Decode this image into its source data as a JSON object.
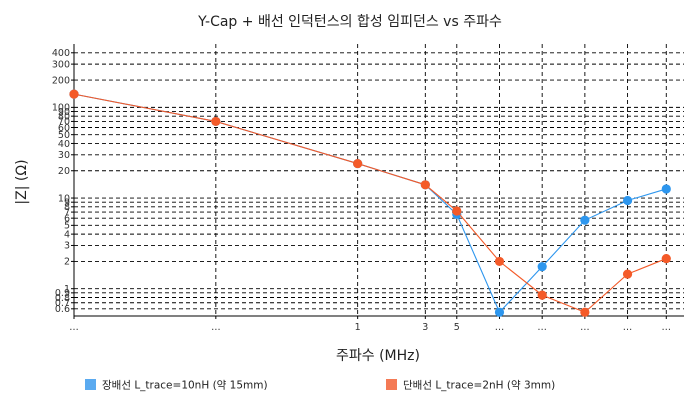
{
  "chart_data": {
    "type": "line",
    "title": "Y-Cap + 배선 인덕턴스의 합성 임피던스 vs 주파수",
    "xlabel": "주파수 (MHz)",
    "ylabel": "|Z| (Ω)",
    "xscale": "log",
    "yscale": "log",
    "xlim": [
      0.01,
      200
    ],
    "ylim": [
      0.5,
      500
    ],
    "grid": true,
    "legend_position": "bottom",
    "x_ticks": [
      {
        "value": 0.01,
        "label": "…"
      },
      {
        "value": 0.1,
        "label": "…"
      },
      {
        "value": 1,
        "label": "1"
      },
      {
        "value": 3,
        "label": "3"
      },
      {
        "value": 5,
        "label": "5"
      },
      {
        "value": 10,
        "label": "…"
      },
      {
        "value": 20,
        "label": "…"
      },
      {
        "value": 40,
        "label": "…"
      },
      {
        "value": 80,
        "label": "…"
      },
      {
        "value": 150,
        "label": "…"
      }
    ],
    "y_ticks": [
      {
        "value": 0.6,
        "label": "0.6"
      },
      {
        "value": 0.7,
        "label": "0.7"
      },
      {
        "value": 0.8,
        "label": "0.8"
      },
      {
        "value": 0.9,
        "label": "0.9"
      },
      {
        "value": 1,
        "label": "1"
      },
      {
        "value": 2,
        "label": "2"
      },
      {
        "value": 3,
        "label": "3"
      },
      {
        "value": 4,
        "label": "4"
      },
      {
        "value": 5,
        "label": "5"
      },
      {
        "value": 6,
        "label": "6"
      },
      {
        "value": 7,
        "label": "7"
      },
      {
        "value": 8,
        "label": "8"
      },
      {
        "value": 9,
        "label": "9"
      },
      {
        "value": 10,
        "label": "10"
      },
      {
        "value": 20,
        "label": "20"
      },
      {
        "value": 30,
        "label": "30"
      },
      {
        "value": 40,
        "label": "40"
      },
      {
        "value": 50,
        "label": "50"
      },
      {
        "value": 60,
        "label": "60"
      },
      {
        "value": 70,
        "label": "70"
      },
      {
        "value": 80,
        "label": "80"
      },
      {
        "value": 90,
        "label": "90"
      },
      {
        "value": 100,
        "label": "100"
      },
      {
        "value": 200,
        "label": "200"
      },
      {
        "value": 300,
        "label": "300"
      },
      {
        "value": 400,
        "label": "400"
      }
    ],
    "x": [
      0.01,
      0.1,
      1,
      3,
      5,
      10,
      20,
      40,
      80,
      150
    ],
    "series": [
      {
        "name": "장배선 L_trace=10nH (약 15mm)",
        "color": "#2d96ee",
        "legend_color": "#5aaaf0",
        "values": [
          140,
          70,
          24,
          14,
          6.6,
          0.55,
          1.75,
          5.7,
          9.4,
          12.6
        ]
      },
      {
        "name": "단배선 L_trace=2nH (약 3mm)",
        "color": "#f45a28",
        "legend_color": "#f47a55",
        "values": [
          140,
          70,
          24,
          14,
          7.2,
          2.0,
          0.85,
          0.55,
          1.45,
          2.15
        ]
      }
    ]
  }
}
